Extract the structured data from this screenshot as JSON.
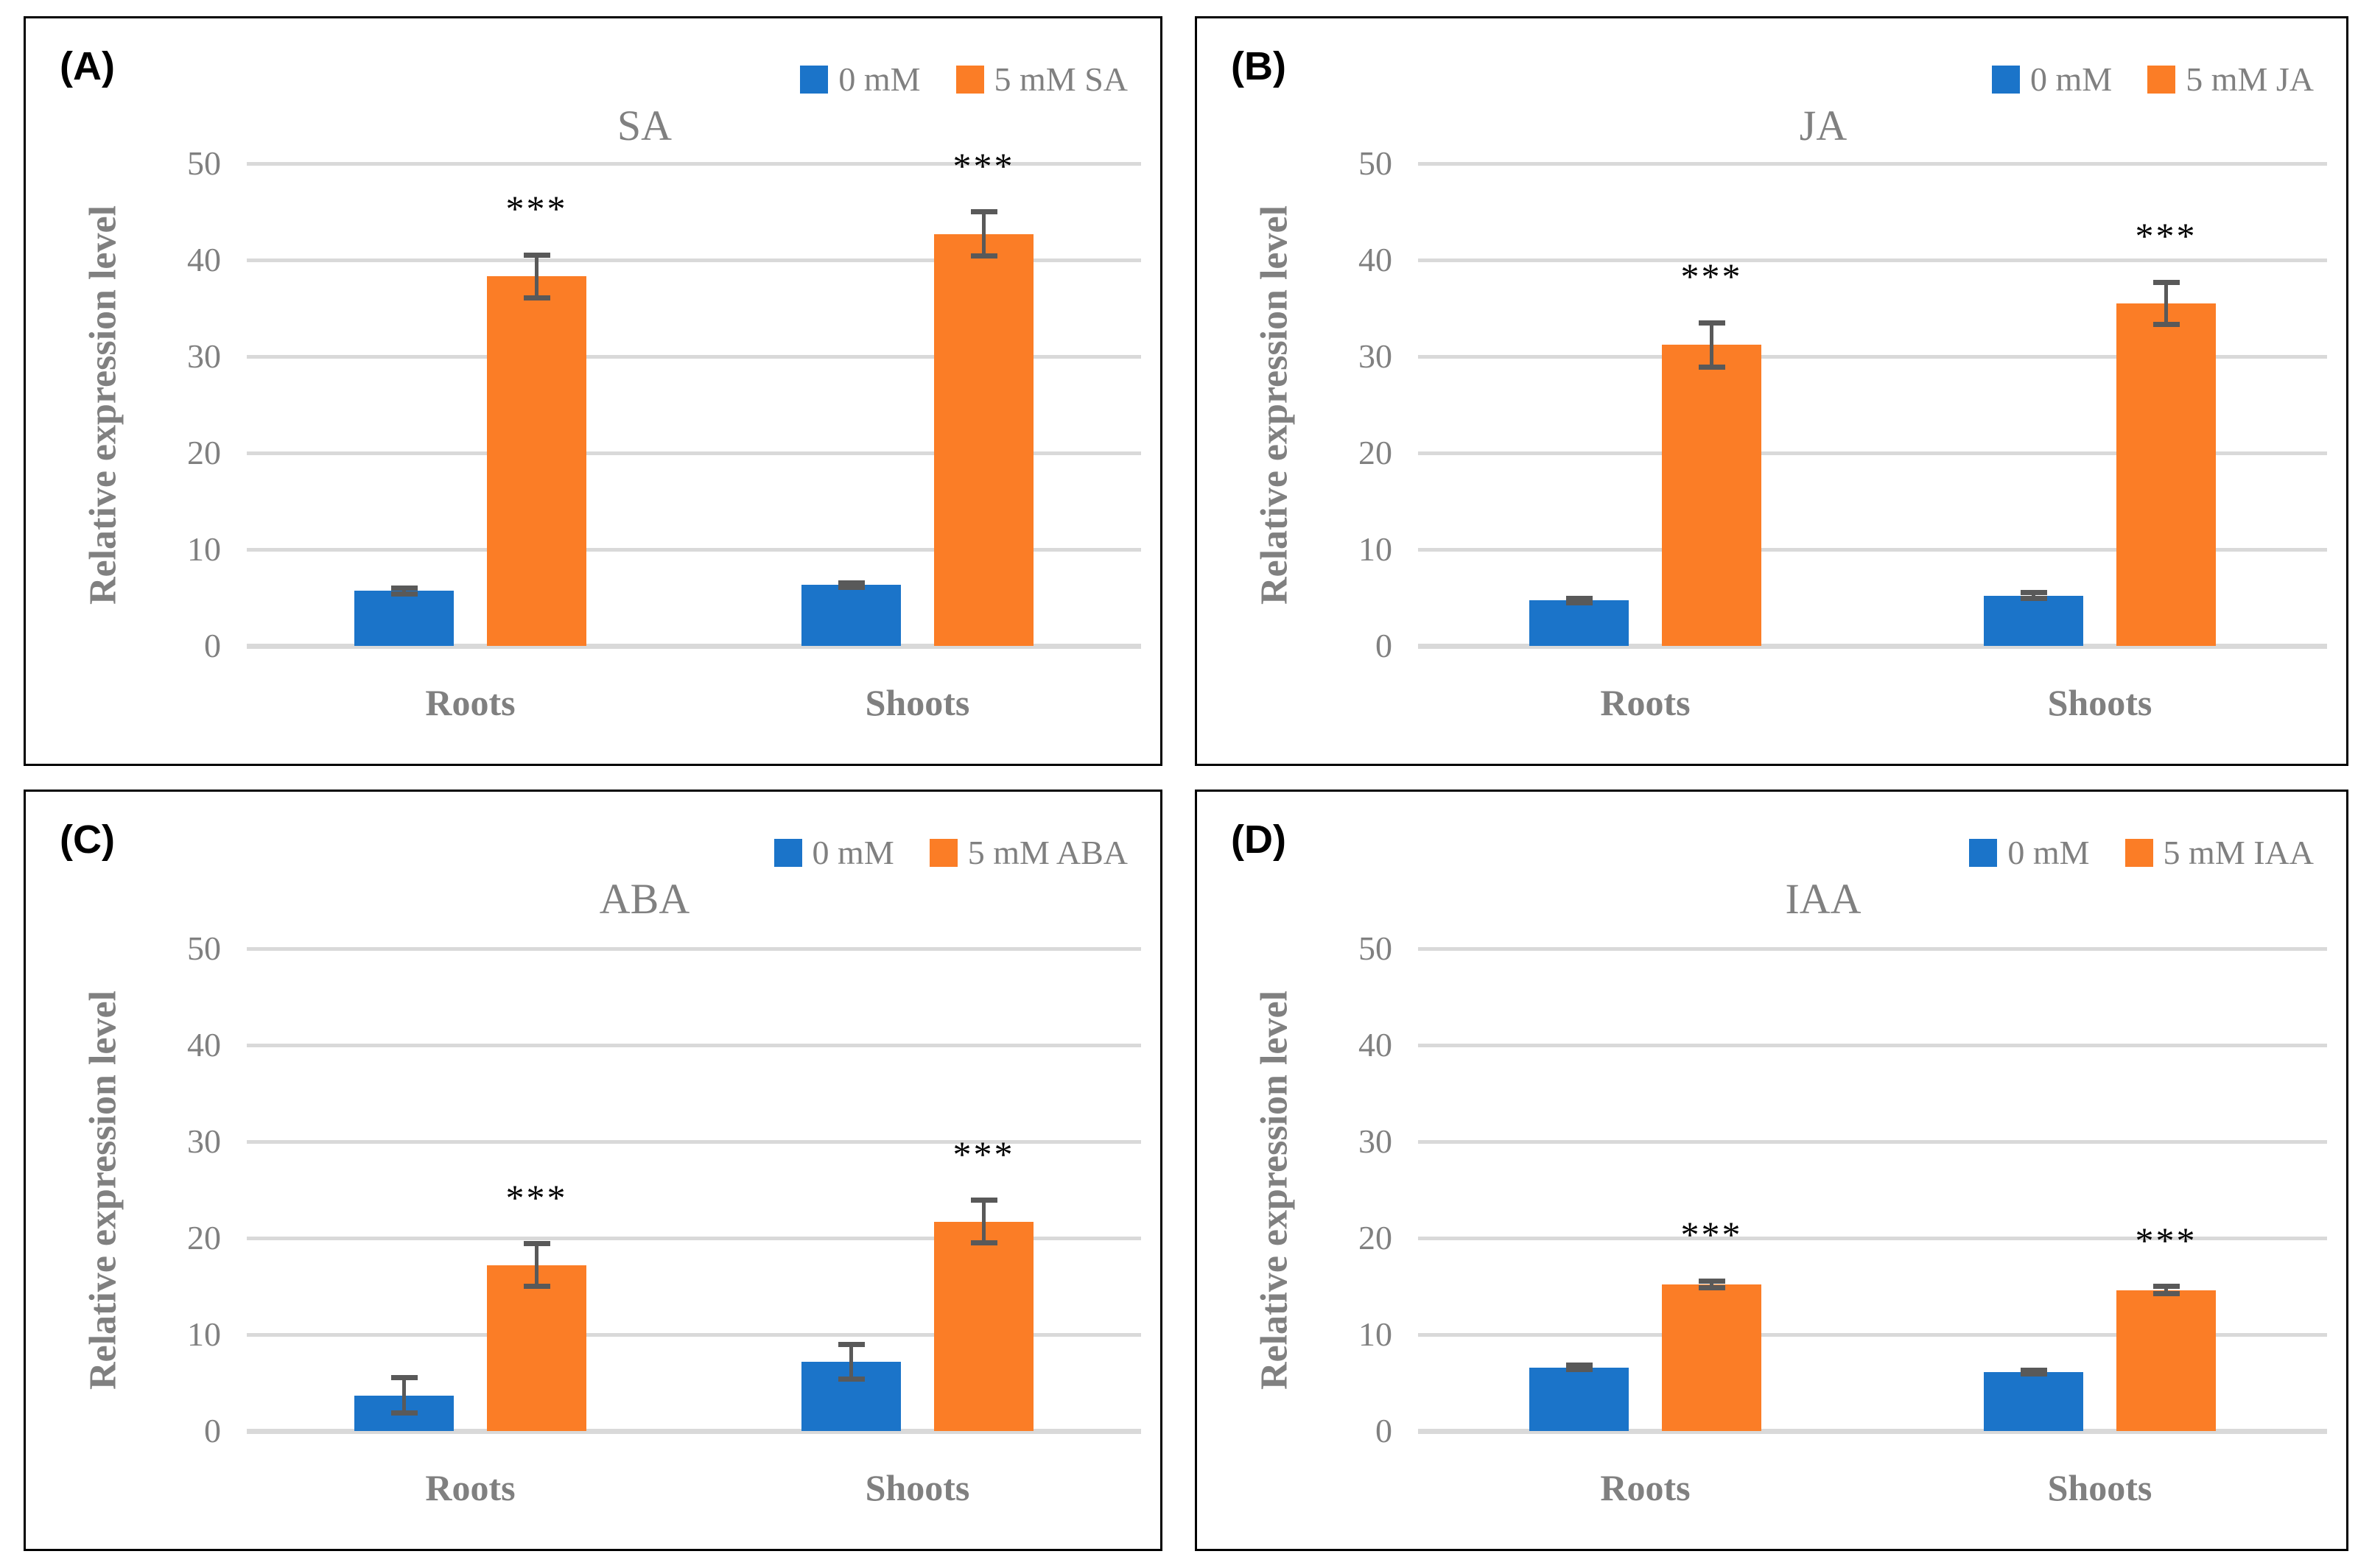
{
  "figure": {
    "background": "#FFFFFF",
    "panel_border_color": "#000000"
  },
  "style": {
    "control_color": "#1B74C9",
    "treatment_color": "#FB7D26",
    "text_gray": "#808080",
    "gridline_color": "#D9D9D9",
    "error_bar_color": "#595959",
    "significance_color": "#000000"
  },
  "chart_data": [
    {
      "type": "bar",
      "panel_label": "(A)",
      "title": "SA",
      "ylabel": "Relative expression level",
      "ylim": [
        0,
        50
      ],
      "yticks": [
        0,
        10,
        20,
        30,
        40,
        50
      ],
      "grid": true,
      "legend_position": "top-right",
      "categories": [
        "Roots",
        "Shoots"
      ],
      "series": [
        {
          "name": "0 mM",
          "color_key": "control_color",
          "values": [
            5.7,
            6.3
          ],
          "errors": [
            0.3,
            0.2
          ],
          "significance": [
            "",
            ""
          ]
        },
        {
          "name": "5 mM SA",
          "color_key": "treatment_color",
          "values": [
            38.3,
            42.7
          ],
          "errors": [
            2.2,
            2.3
          ],
          "significance": [
            "***",
            "***"
          ]
        }
      ]
    },
    {
      "type": "bar",
      "panel_label": "(B)",
      "title": "JA",
      "ylabel": "Relative expression level",
      "ylim": [
        0,
        50
      ],
      "yticks": [
        0,
        10,
        20,
        30,
        40,
        50
      ],
      "grid": true,
      "legend_position": "top-right",
      "categories": [
        "Roots",
        "Shoots"
      ],
      "series": [
        {
          "name": "0 mM",
          "color_key": "control_color",
          "values": [
            4.7,
            5.2
          ],
          "errors": [
            0.25,
            0.3
          ],
          "significance": [
            "",
            ""
          ]
        },
        {
          "name": "5 mM JA",
          "color_key": "treatment_color",
          "values": [
            31.2,
            35.5
          ],
          "errors": [
            2.3,
            2.2
          ],
          "significance": [
            "***",
            "***"
          ]
        }
      ]
    },
    {
      "type": "bar",
      "panel_label": "(C)",
      "title": "ABA",
      "ylabel": "Relative expression level",
      "ylim": [
        0,
        50
      ],
      "yticks": [
        0,
        10,
        20,
        30,
        40,
        50
      ],
      "grid": true,
      "legend_position": "top-right",
      "categories": [
        "Roots",
        "Shoots"
      ],
      "series": [
        {
          "name": "0 mM",
          "color_key": "control_color",
          "values": [
            3.7,
            7.2
          ],
          "errors": [
            1.8,
            1.8
          ],
          "significance": [
            "",
            ""
          ]
        },
        {
          "name": "5 mM ABA",
          "color_key": "treatment_color",
          "values": [
            17.2,
            21.7
          ],
          "errors": [
            2.2,
            2.2
          ],
          "significance": [
            "***",
            "***"
          ]
        }
      ]
    },
    {
      "type": "bar",
      "panel_label": "(D)",
      "title": "IAA",
      "ylabel": "Relative expression level",
      "ylim": [
        0,
        50
      ],
      "yticks": [
        0,
        10,
        20,
        30,
        40,
        50
      ],
      "grid": true,
      "legend_position": "top-right",
      "categories": [
        "Roots",
        "Shoots"
      ],
      "series": [
        {
          "name": "0 mM",
          "color_key": "control_color",
          "values": [
            6.6,
            6.1
          ],
          "errors": [
            0.2,
            0.2
          ],
          "significance": [
            "",
            ""
          ]
        },
        {
          "name": "5 mM IAA",
          "color_key": "treatment_color",
          "values": [
            15.2,
            14.6
          ],
          "errors": [
            0.35,
            0.4
          ],
          "significance": [
            "***",
            "***"
          ]
        }
      ]
    }
  ]
}
